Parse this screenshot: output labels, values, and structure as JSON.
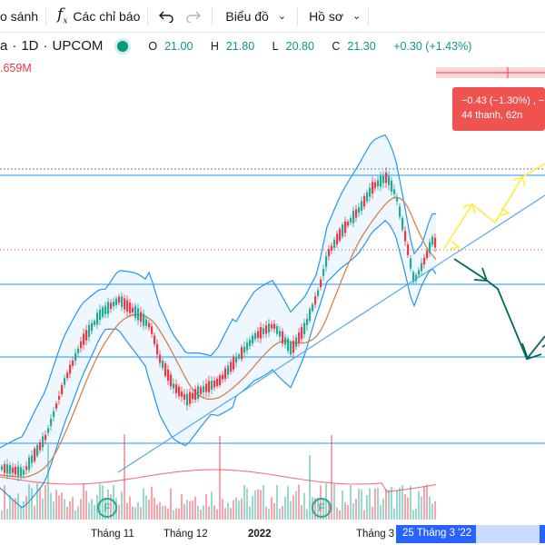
{
  "toolbar": {
    "compare_label": "o sánh",
    "indicators_label": "Các chỉ báo",
    "chart_label": "Biểu đồ",
    "profile_label": "Hồ sơ"
  },
  "legend": {
    "symbol_partial": "a",
    "interval": "1D",
    "exchange": "UPCOM",
    "open_key": "O",
    "open": "21.00",
    "high_key": "H",
    "high": "21.80",
    "low_key": "L",
    "low": "20.80",
    "close_key": "C",
    "close": "21.30",
    "change": "+0.30 (+1.43%)"
  },
  "volume_label": ".659M",
  "tooltip": {
    "line1": "−0.43 (−1.30%) , −",
    "line2": "44 thanh, 62n"
  },
  "xaxis": {
    "label_nov": "Tháng 11",
    "label_dec": "Tháng 12",
    "label_year": "2022",
    "label_mar": "Tháng 3"
  },
  "date_badge": "25 Tháng 3 '22",
  "events": [
    "F",
    "F"
  ],
  "colors": {
    "up": "#22ab94",
    "down": "#f23645",
    "bollinger": "#2196f3",
    "ma_orange": "#d4814a",
    "ma_yellow": "#f5c842",
    "projection_yellow": "#ffeb3b",
    "projection_green": "#006b5c",
    "accent": "#2962ff"
  }
}
